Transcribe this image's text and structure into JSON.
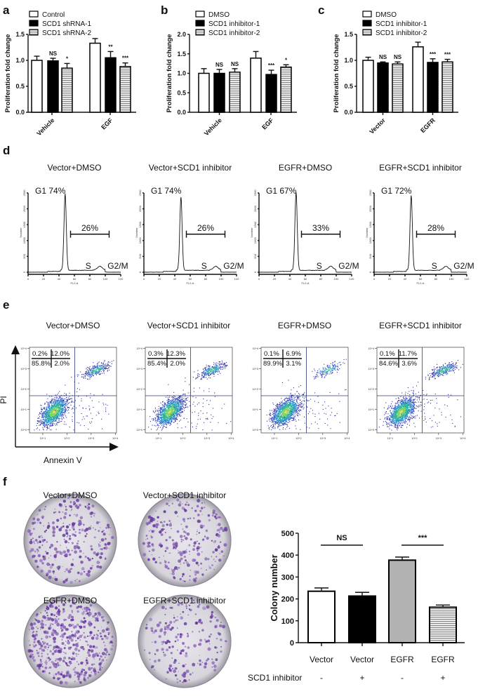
{
  "panel_labels": {
    "a": "a",
    "b": "b",
    "c": "c",
    "d": "d",
    "e": "e",
    "f": "f"
  },
  "colors": {
    "white_bar": "#ffffff",
    "black_bar": "#000000",
    "striped_bar": "#9a9a9a",
    "grey_bar": "#b2b2b2",
    "stain": "#6a3fa0"
  },
  "chart_data": [
    {
      "panel": "a",
      "type": "bar",
      "categories": [
        "Vehicle",
        "EGF"
      ],
      "ylabel": "Proliferation fold change",
      "ylim": [
        0,
        1.5
      ],
      "yticks": [
        "0.0",
        "0.5",
        "1.0",
        "1.5"
      ],
      "legend_placement": "top-left",
      "series": [
        {
          "name": "Control",
          "fill": "white",
          "values": [
            1.0,
            1.33
          ],
          "errors": [
            0.08,
            0.09
          ],
          "significance": [
            "",
            ""
          ]
        },
        {
          "name": "SCD1 shRNA-1",
          "fill": "black",
          "values": [
            0.99,
            1.05
          ],
          "errors": [
            0.05,
            0.12
          ],
          "significance": [
            "NS",
            "**"
          ]
        },
        {
          "name": "SCD1 shRNA-2",
          "fill": "striped",
          "values": [
            0.85,
            0.88
          ],
          "errors": [
            0.09,
            0.07
          ],
          "significance": [
            "*",
            "***"
          ]
        }
      ]
    },
    {
      "panel": "b",
      "type": "bar",
      "categories": [
        "Vehicle",
        "EGF"
      ],
      "ylabel": "Proliferation fold change",
      "ylim": [
        0,
        2.0
      ],
      "yticks": [
        "0.0",
        "0.5",
        "1.0",
        "1.5",
        "2.0"
      ],
      "legend_placement": "top-left",
      "series": [
        {
          "name": "DMSO",
          "fill": "white",
          "values": [
            1.0,
            1.39
          ],
          "errors": [
            0.12,
            0.17
          ],
          "significance": [
            "",
            ""
          ]
        },
        {
          "name": "SCD1 inhibitor-1",
          "fill": "black",
          "values": [
            1.0,
            0.97
          ],
          "errors": [
            0.1,
            0.11
          ],
          "significance": [
            "NS",
            "***"
          ]
        },
        {
          "name": "SCD1 inhibitor-2",
          "fill": "striped",
          "values": [
            1.03,
            1.16
          ],
          "errors": [
            0.09,
            0.06
          ],
          "significance": [
            "NS",
            "*"
          ]
        }
      ]
    },
    {
      "panel": "c",
      "type": "bar",
      "categories": [
        "Vector",
        "EGFR"
      ],
      "ylabel": "Proliferation fold change",
      "ylim": [
        0,
        1.5
      ],
      "yticks": [
        "0.0",
        "0.5",
        "1.0",
        "1.5"
      ],
      "legend_placement": "top-left",
      "series": [
        {
          "name": "DMSO",
          "fill": "white",
          "values": [
            1.0,
            1.26
          ],
          "errors": [
            0.06,
            0.09
          ],
          "significance": [
            "",
            ""
          ]
        },
        {
          "name": "SCD1 inhibitor-1",
          "fill": "black",
          "values": [
            0.95,
            0.96
          ],
          "errors": [
            0.02,
            0.07
          ],
          "significance": [
            "NS",
            "***"
          ]
        },
        {
          "name": "SCD1 inhibitor-2",
          "fill": "striped",
          "values": [
            0.93,
            0.97
          ],
          "errors": [
            0.04,
            0.05
          ],
          "significance": [
            "NS",
            "***"
          ]
        }
      ]
    },
    {
      "panel": "d",
      "type": "line",
      "xlabel": "FL2-A",
      "ylabel": "Number",
      "xlim": [
        0,
        120
      ],
      "ylim": [
        0,
        2500
      ],
      "xticks": [
        "0",
        "20",
        "40",
        "60",
        "80",
        "100",
        "120"
      ],
      "yticks": [
        "0",
        "500",
        "1000",
        "1500",
        "2000",
        "2500"
      ],
      "subplots": [
        {
          "title": "Vector+DMSO",
          "g1_label": "G1 74%",
          "sg2m_label": "26%",
          "s_label": "S",
          "g2m_label": "G2/M",
          "g1_peak": 2400,
          "g1_position": 48
        },
        {
          "title": "Vector+SCD1 inhibitor",
          "g1_label": "G1 74%",
          "sg2m_label": "26%",
          "s_label": "S",
          "g2m_label": "G2/M",
          "g1_peak": 2300,
          "g1_position": 48
        },
        {
          "title": "EGFR+DMSO",
          "g1_label": "G1 67%",
          "sg2m_label": "33%",
          "s_label": "S",
          "g2m_label": "G2/M",
          "g1_peak": 2450,
          "g1_position": 48
        },
        {
          "title": "EGFR+SCD1 inhibitor",
          "g1_label": "G1 72%",
          "sg2m_label": "28%",
          "s_label": "S",
          "g2m_label": "G2/M",
          "g1_peak": 2350,
          "g1_position": 48
        }
      ]
    },
    {
      "panel": "e",
      "type": "scatter",
      "xlabel": "Annexin V",
      "ylabel": "PI",
      "scale": "log",
      "ticks": [
        "10^0",
        "10^1",
        "10^2",
        "10^3",
        "10^4"
      ],
      "subplots": [
        {
          "title": "Vector+DMSO",
          "quadrants": {
            "upper_left": "0.2%",
            "upper_right": "12.0%",
            "lower_left": "85.8%",
            "lower_right": "2.0%"
          }
        },
        {
          "title": "Vector+SCD1 inhibitor",
          "quadrants": {
            "upper_left": "0.3%",
            "upper_right": "12.3%",
            "lower_left": "85.4%",
            "lower_right": "2.0%"
          }
        },
        {
          "title": "EGFR+DMSO",
          "quadrants": {
            "upper_left": "0.1%",
            "upper_right": "6.9%",
            "lower_left": "89.9%",
            "lower_right": "3.1%"
          }
        },
        {
          "title": "EGFR+SCD1 inhibitor",
          "quadrants": {
            "upper_left": "0.1%",
            "upper_right": "11.7%",
            "lower_left": "84.6%",
            "lower_right": "3.6%"
          }
        }
      ]
    },
    {
      "panel": "f",
      "type": "bar",
      "dish_titles": [
        "Vector+DMSO",
        "Vector+SCD1 inhibitor",
        "EGFR+DMSO",
        "EGFR+SCD1 inhibitor"
      ],
      "categories": [
        "Vector",
        "Vector",
        "EGFR",
        "EGFR"
      ],
      "row_label": "SCD1 inhibitor",
      "row_values": [
        "-",
        "+",
        "-",
        "+"
      ],
      "ylabel": "Colony number",
      "ylim": [
        0,
        500
      ],
      "yticks": [
        "0",
        "100",
        "200",
        "300",
        "400",
        "500"
      ],
      "values": [
        235,
        213,
        377,
        162
      ],
      "errors": [
        15,
        17,
        14,
        10
      ],
      "fills": [
        "white",
        "black",
        "grey",
        "striped"
      ],
      "comparisons": [
        {
          "label": "NS",
          "between": [
            0,
            1
          ]
        },
        {
          "label": "***",
          "between": [
            2,
            3
          ]
        }
      ]
    }
  ]
}
